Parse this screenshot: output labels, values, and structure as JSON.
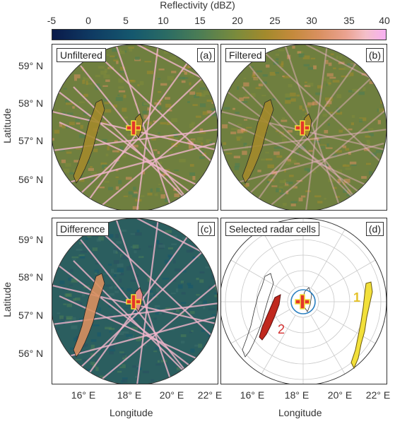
{
  "colorbar": {
    "title": "Reflectivity (dBZ)",
    "ticks": [
      "-5",
      "0",
      "5",
      "10",
      "15",
      "20",
      "25",
      "30",
      "35",
      "40"
    ],
    "range": [
      -5,
      40
    ],
    "colors": [
      "#0a1a4a",
      "#15586e",
      "#4b7d55",
      "#a38a2c",
      "#d99060",
      "#f7b0f2"
    ]
  },
  "panels": [
    {
      "title": "Unfiltered",
      "label": "(a)"
    },
    {
      "title": "Filtered",
      "label": "(b)"
    },
    {
      "title": "Difference",
      "label": "(c)"
    },
    {
      "title": "Selected radar cells",
      "label": "(d)"
    }
  ],
  "axes": {
    "ylabel": "Latitude",
    "xlabel": "Longitude",
    "lat_ticks": [
      "59° N",
      "58° N",
      "57° N",
      "56° N"
    ],
    "lon_ticks": [
      "16° E",
      "18° E",
      "20° E",
      "22° E"
    ]
  },
  "cells": {
    "cell1": "1",
    "cell2": "2",
    "cell1_color": "#f2e03a",
    "cell2_color": "#c0281e"
  },
  "chart_data": {
    "type": "heatmap",
    "title": "",
    "xlabel": "Longitude",
    "ylabel": "Latitude",
    "xlim": [
      14.5,
      22.5
    ],
    "ylim": [
      55.2,
      59.6
    ],
    "x_ticks": [
      "16° E",
      "18° E",
      "20° E",
      "22° E"
    ],
    "y_ticks": [
      "59° N",
      "58° N",
      "57° N",
      "56° N"
    ],
    "radar_site": {
      "lon": 18.4,
      "lat": 57.3
    },
    "colorbar": {
      "label": "Reflectivity (dBZ)",
      "min": -5,
      "max": 40
    },
    "panels": [
      "Unfiltered",
      "Filtered",
      "Difference",
      "Selected radar cells"
    ],
    "selected_cells": [
      {
        "name": "1",
        "color": "#f2e03a"
      },
      {
        "name": "2",
        "color": "#c0281e"
      }
    ]
  }
}
